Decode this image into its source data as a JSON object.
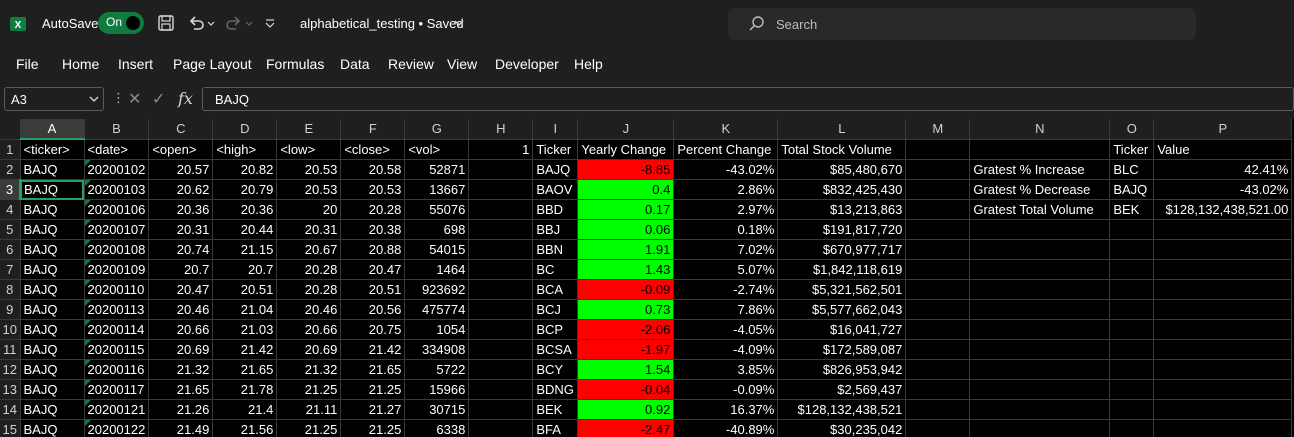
{
  "titlebar": {
    "autosave_label": "AutoSave",
    "autosave_state": "On",
    "filename": "alphabetical_testing • Saved",
    "search_placeholder": "Search"
  },
  "menu": [
    "File",
    "Home",
    "Insert",
    "Page Layout",
    "Formulas",
    "Data",
    "Review",
    "View",
    "Developer",
    "Help"
  ],
  "formula_bar": {
    "name_box": "A3",
    "formula": "BAJQ"
  },
  "columns": [
    "A",
    "B",
    "C",
    "D",
    "E",
    "F",
    "G",
    "H",
    "I",
    "J",
    "K",
    "L",
    "M",
    "N",
    "O",
    "P"
  ],
  "selected_column": "A",
  "selected_row": 3,
  "rows": [
    {
      "n": "1",
      "cells": [
        "<ticker>",
        "<date>",
        "<open>",
        "<high>",
        "<low>",
        "<close>",
        "<vol>",
        "1",
        "Ticker",
        "Yearly Change",
        "Percent Change",
        "Total Stock Volume",
        "",
        "",
        "Ticker",
        "Value"
      ]
    },
    {
      "n": "2",
      "cells": [
        "BAJQ",
        "20200102",
        "20.57",
        "20.82",
        "20.53",
        "20.58",
        "52871",
        "",
        "BAJQ",
        "-8.85",
        "-43.02%",
        "$85,480,670",
        "",
        "Gratest % Increase",
        "BLC",
        "42.41%"
      ]
    },
    {
      "n": "3",
      "cells": [
        "BAJQ",
        "20200103",
        "20.62",
        "20.79",
        "20.53",
        "20.53",
        "13667",
        "",
        "BAOV",
        "0.4",
        "2.86%",
        "$832,425,430",
        "",
        "Gratest % Decrease",
        "BAJQ",
        "-43.02%"
      ]
    },
    {
      "n": "4",
      "cells": [
        "BAJQ",
        "20200106",
        "20.36",
        "20.36",
        "20",
        "20.28",
        "55076",
        "",
        "BBD",
        "0.17",
        "2.97%",
        "$13,213,863",
        "",
        "Gratest Total Volume",
        "BEK",
        "$128,132,438,521.00"
      ]
    },
    {
      "n": "5",
      "cells": [
        "BAJQ",
        "20200107",
        "20.31",
        "20.44",
        "20.31",
        "20.38",
        "698",
        "",
        "BBJ",
        "0.06",
        "0.18%",
        "$191,817,720",
        "",
        "",
        "",
        ""
      ]
    },
    {
      "n": "6",
      "cells": [
        "BAJQ",
        "20200108",
        "20.74",
        "21.15",
        "20.67",
        "20.88",
        "54015",
        "",
        "BBN",
        "1.91",
        "7.02%",
        "$670,977,717",
        "",
        "",
        "",
        ""
      ]
    },
    {
      "n": "7",
      "cells": [
        "BAJQ",
        "20200109",
        "20.7",
        "20.7",
        "20.28",
        "20.47",
        "1464",
        "",
        "BC",
        "1.43",
        "5.07%",
        "$1,842,118,619",
        "",
        "",
        "",
        ""
      ]
    },
    {
      "n": "8",
      "cells": [
        "BAJQ",
        "20200110",
        "20.47",
        "20.51",
        "20.28",
        "20.51",
        "923692",
        "",
        "BCA",
        "-0.09",
        "-2.74%",
        "$5,321,562,501",
        "",
        "",
        "",
        ""
      ]
    },
    {
      "n": "9",
      "cells": [
        "BAJQ",
        "20200113",
        "20.46",
        "21.04",
        "20.46",
        "20.56",
        "475774",
        "",
        "BCJ",
        "0.73",
        "7.86%",
        "$5,577,662,043",
        "",
        "",
        "",
        ""
      ]
    },
    {
      "n": "10",
      "cells": [
        "BAJQ",
        "20200114",
        "20.66",
        "21.03",
        "20.66",
        "20.75",
        "1054",
        "",
        "BCP",
        "-2.06",
        "-4.05%",
        "$16,041,727",
        "",
        "",
        "",
        ""
      ]
    },
    {
      "n": "11",
      "cells": [
        "BAJQ",
        "20200115",
        "20.69",
        "21.42",
        "20.69",
        "21.42",
        "334908",
        "",
        "BCSA",
        "-1.97",
        "-4.09%",
        "$172,589,087",
        "",
        "",
        "",
        ""
      ]
    },
    {
      "n": "12",
      "cells": [
        "BAJQ",
        "20200116",
        "21.32",
        "21.65",
        "21.32",
        "21.65",
        "5722",
        "",
        "BCY",
        "1.54",
        "3.85%",
        "$826,953,942",
        "",
        "",
        "",
        ""
      ]
    },
    {
      "n": "13",
      "cells": [
        "BAJQ",
        "20200117",
        "21.65",
        "21.78",
        "21.25",
        "21.25",
        "15966",
        "",
        "BDNG",
        "-0.04",
        "-0.09%",
        "$2,569,437",
        "",
        "",
        "",
        ""
      ]
    },
    {
      "n": "14",
      "cells": [
        "BAJQ",
        "20200121",
        "21.26",
        "21.4",
        "21.11",
        "21.27",
        "30715",
        "",
        "BEK",
        "0.92",
        "16.37%",
        "$128,132,438,521",
        "",
        "",
        "",
        ""
      ]
    },
    {
      "n": "15",
      "cells": [
        "BAJQ",
        "20200122",
        "21.49",
        "21.56",
        "21.25",
        "21.25",
        "6338",
        "",
        "BFA",
        "-2.47",
        "-40.89%",
        "$30,235,042",
        "",
        "",
        "",
        ""
      ]
    }
  ],
  "colors": {
    "positive_fill": "#00ff00",
    "negative_fill": "#ff0000",
    "accent": "#21a366"
  }
}
